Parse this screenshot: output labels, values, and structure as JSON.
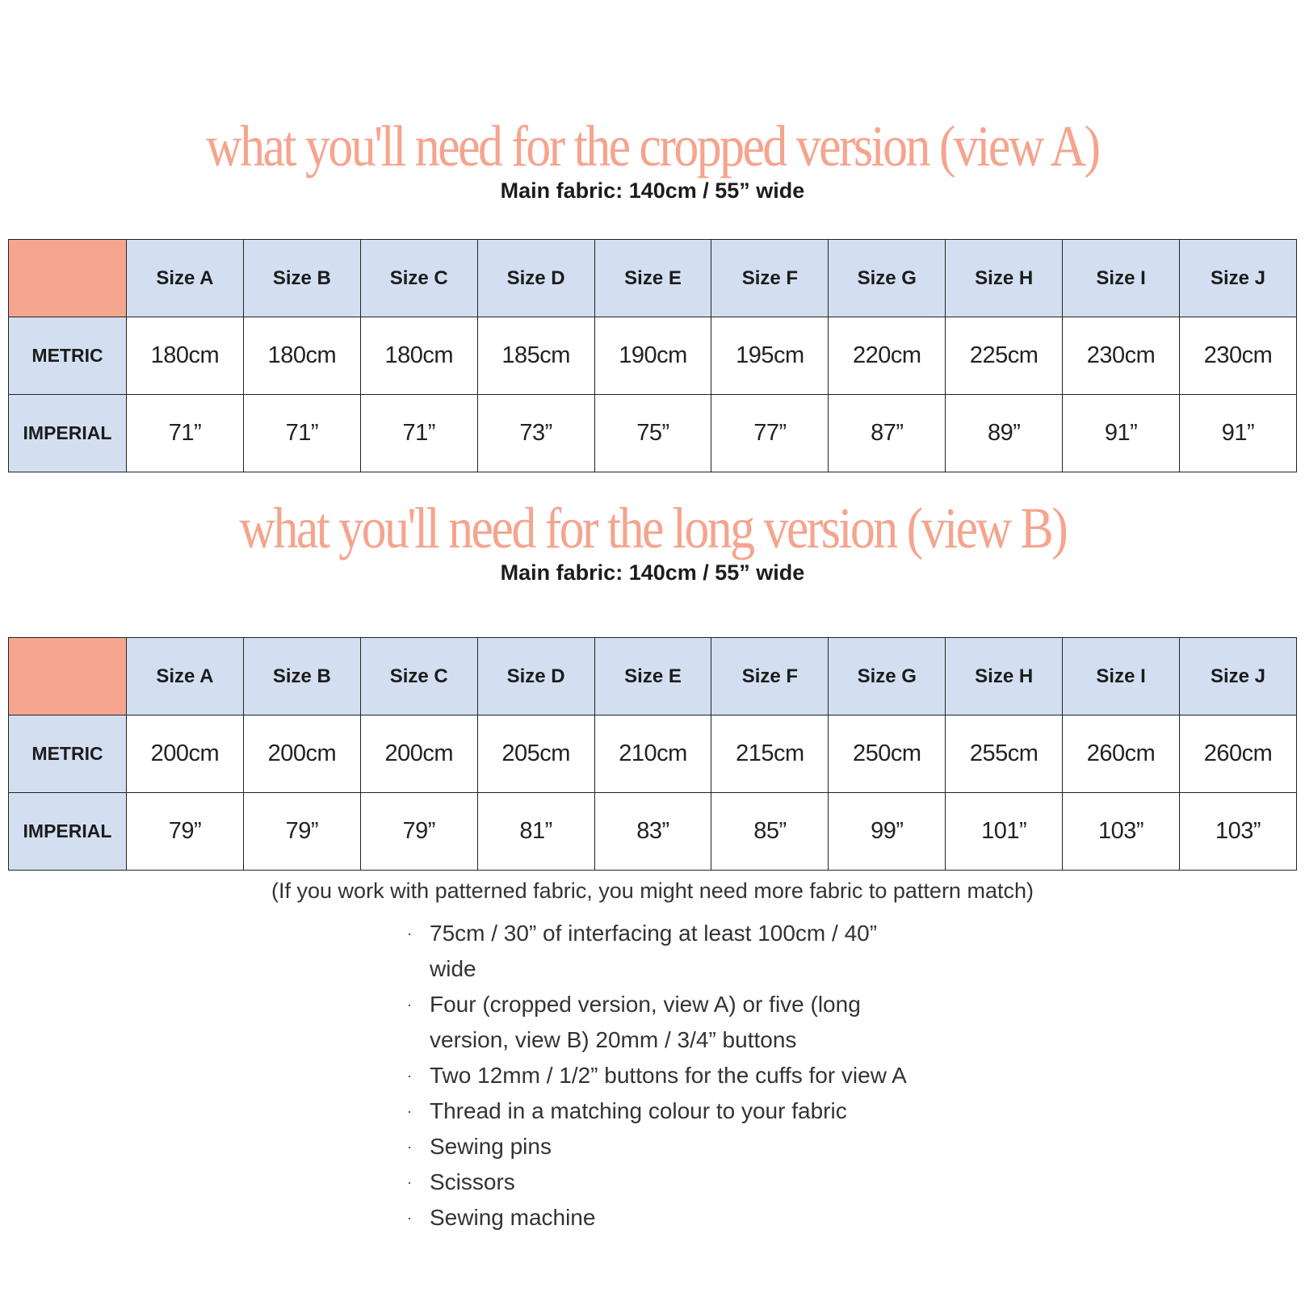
{
  "colors": {
    "accent": "#F5A48E",
    "header_fill": "#D3DFF1",
    "corner_fill": "#F6A68F"
  },
  "sections": [
    {
      "title": "what you'll need for the cropped version (view A)",
      "subtitle": "Main fabric: 140cm / 55” wide",
      "sizes": [
        "Size A",
        "Size B",
        "Size C",
        "Size D",
        "Size E",
        "Size F",
        "Size G",
        "Size H",
        "Size I",
        "Size J"
      ],
      "rows": [
        {
          "label": "METRIC",
          "values": [
            "180cm",
            "180cm",
            "180cm",
            "185cm",
            "190cm",
            "195cm",
            "220cm",
            "225cm",
            "230cm",
            "230cm"
          ]
        },
        {
          "label": "IMPERIAL",
          "values": [
            "71”",
            "71”",
            "71”",
            "73”",
            "75”",
            "77”",
            "87”",
            "89”",
            "91”",
            "91”"
          ]
        }
      ]
    },
    {
      "title": "what you'll need for the long version (view B)",
      "subtitle": "Main fabric: 140cm / 55” wide",
      "sizes": [
        "Size A",
        "Size B",
        "Size C",
        "Size D",
        "Size E",
        "Size F",
        "Size G",
        "Size H",
        "Size I",
        "Size J"
      ],
      "rows": [
        {
          "label": "METRIC",
          "values": [
            "200cm",
            "200cm",
            "200cm",
            "205cm",
            "210cm",
            "215cm",
            "250cm",
            "255cm",
            "260cm",
            "260cm"
          ]
        },
        {
          "label": "IMPERIAL",
          "values": [
            "79”",
            "79”",
            "79”",
            "81”",
            "83”",
            "85”",
            "99”",
            "101”",
            "103”",
            "103”"
          ]
        }
      ]
    }
  ],
  "note": "(If you work with patterned fabric, you might need more fabric to pattern match)",
  "bullet_glyph": "·",
  "supplies": [
    "75cm / 30” of interfacing at least 100cm / 40” wide",
    "Four (cropped version, view A) or five (long version, view B) 20mm / 3/4” buttons",
    "Two 12mm / 1/2” buttons for the cuffs for view A",
    "Thread in a matching colour to your fabric",
    "Sewing pins",
    "Scissors",
    "Sewing machine"
  ]
}
